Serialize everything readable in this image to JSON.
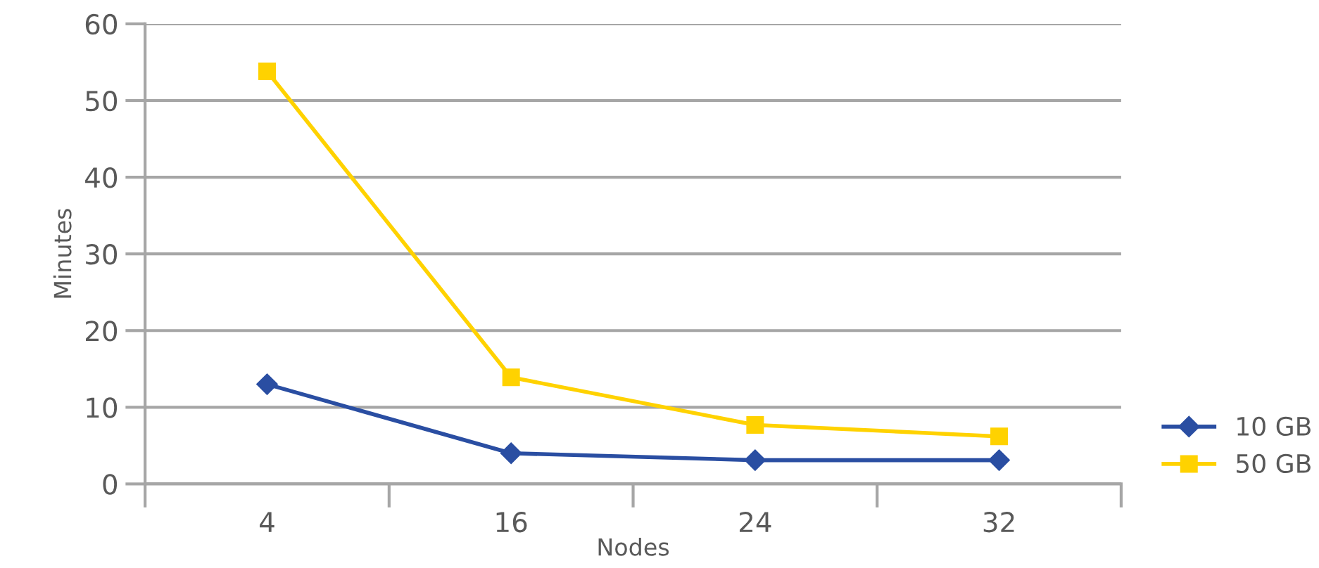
{
  "chart_data": {
    "type": "line",
    "xlabel": "Nodes",
    "ylabel": "Minutes",
    "categories": [
      "4",
      "16",
      "24",
      "32"
    ],
    "series": [
      {
        "name": "10 GB",
        "color": "#2a4ea2",
        "marker": "diamond",
        "values": [
          13.0,
          4.0,
          3.1,
          3.1
        ]
      },
      {
        "name": "50 GB",
        "color": "#ffd200",
        "marker": "square",
        "values": [
          53.8,
          13.9,
          7.7,
          6.2
        ]
      }
    ],
    "ylim": [
      0,
      60
    ],
    "yticks": [
      0,
      10,
      20,
      30,
      40,
      50,
      60
    ],
    "grid": "y",
    "legend": "right",
    "line_style": "solid"
  }
}
